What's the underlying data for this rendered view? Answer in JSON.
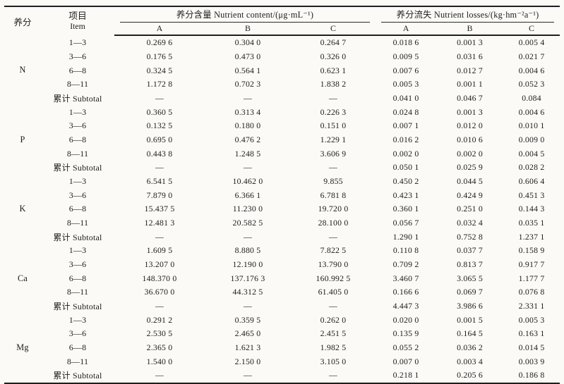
{
  "table": {
    "headers": {
      "nutrient": "养分",
      "item_cn": "项目",
      "item_en": "Item",
      "content_group": "养分含量 Nutrient content/(μg·mL⁻¹)",
      "losses_group": "养分流失 Nutrient losses/(kg·hm⁻²a⁻¹)",
      "sub": [
        "A",
        "B",
        "C"
      ]
    },
    "sections": [
      {
        "nutrient": "N",
        "rows": [
          {
            "item": "1—3",
            "content": [
              "0.269 6",
              "0.304 0",
              "0.264 7"
            ],
            "losses": [
              "0.018 6",
              "0.001 3",
              "0.005 4"
            ]
          },
          {
            "item": "3—6",
            "content": [
              "0.176 5",
              "0.473 0",
              "0.326 0"
            ],
            "losses": [
              "0.009 5",
              "0.031 6",
              "0.021 7"
            ]
          },
          {
            "item": "6—8",
            "content": [
              "0.324 5",
              "0.564 1",
              "0.623 1"
            ],
            "losses": [
              "0.007 6",
              "0.012 7",
              "0.004 6"
            ]
          },
          {
            "item": "8—11",
            "content": [
              "1.172 8",
              "0.702 3",
              "1.838 2"
            ],
            "losses": [
              "0.005 3",
              "0.001 1",
              "0.052 3"
            ]
          },
          {
            "item": "累计 Subtotal",
            "content": [
              "—",
              "—",
              "—"
            ],
            "losses": [
              "0.041 0",
              "0.046 7",
              "0.084"
            ]
          }
        ]
      },
      {
        "nutrient": "P",
        "rows": [
          {
            "item": "1—3",
            "content": [
              "0.360 5",
              "0.313 4",
              "0.226 3"
            ],
            "losses": [
              "0.024 8",
              "0.001 3",
              "0.004 6"
            ]
          },
          {
            "item": "3—6",
            "content": [
              "0.132 5",
              "0.180 0",
              "0.151 0"
            ],
            "losses": [
              "0.007 1",
              "0.012 0",
              "0.010 1"
            ]
          },
          {
            "item": "6—8",
            "content": [
              "0.695 0",
              "0.476 2",
              "1.229 1"
            ],
            "losses": [
              "0.016 2",
              "0.010 6",
              "0.009 0"
            ]
          },
          {
            "item": "8—11",
            "content": [
              "0.443 8",
              "1.248 5",
              "3.606 9"
            ],
            "losses": [
              "0.002 0",
              "0.002 0",
              "0.004 5"
            ]
          },
          {
            "item": "累计 Subtotal",
            "content": [
              "—",
              "—",
              "—"
            ],
            "losses": [
              "0.050 1",
              "0.025 9",
              "0.028 2"
            ]
          }
        ]
      },
      {
        "nutrient": "K",
        "rows": [
          {
            "item": "1—3",
            "content": [
              "6.541 5",
              "10.462 0",
              "9.855"
            ],
            "losses": [
              "0.450 2",
              "0.044 5",
              "0.606 4"
            ]
          },
          {
            "item": "3—6",
            "content": [
              "7.879 0",
              "6.366 1",
              "6.781 8"
            ],
            "losses": [
              "0.423 1",
              "0.424 9",
              "0.451 3"
            ]
          },
          {
            "item": "6—8",
            "content": [
              "15.437 5",
              "11.230 0",
              "19.720 0"
            ],
            "losses": [
              "0.360 1",
              "0.251 0",
              "0.144 3"
            ]
          },
          {
            "item": "8—11",
            "content": [
              "12.481 3",
              "20.582 5",
              "28.100 0"
            ],
            "losses": [
              "0.056 7",
              "0.032 4",
              "0.035 1"
            ]
          },
          {
            "item": "累计 Subtotal",
            "content": [
              "—",
              "—",
              "—"
            ],
            "losses": [
              "1.290 1",
              "0.752 8",
              "1.237 1"
            ]
          }
        ]
      },
      {
        "nutrient": "Ca",
        "rows": [
          {
            "item": "1—3",
            "content": [
              "1.609 5",
              "8.880 5",
              "7.822 5"
            ],
            "losses": [
              "0.110 8",
              "0.037 7",
              "0.158 9"
            ]
          },
          {
            "item": "3—6",
            "content": [
              "13.207 0",
              "12.190 0",
              "13.790 0"
            ],
            "losses": [
              "0.709 2",
              "0.813 7",
              "0.917 7"
            ]
          },
          {
            "item": "6—8",
            "content": [
              "148.370 0",
              "137.176 3",
              "160.992 5"
            ],
            "losses": [
              "3.460 7",
              "3.065 5",
              "1.177 7"
            ]
          },
          {
            "item": "8—11",
            "content": [
              "36.670 0",
              "44.312 5",
              "61.405 0"
            ],
            "losses": [
              "0.166 6",
              "0.069 7",
              "0.076 8"
            ]
          },
          {
            "item": "累计 Subtotal",
            "content": [
              "—",
              "—",
              "—"
            ],
            "losses": [
              "4.447 3",
              "3.986 6",
              "2.331 1"
            ]
          }
        ]
      },
      {
        "nutrient": "Mg",
        "rows": [
          {
            "item": "1—3",
            "content": [
              "0.291 2",
              "0.359 5",
              "0.262 0"
            ],
            "losses": [
              "0.020 0",
              "0.001 5",
              "0.005 3"
            ]
          },
          {
            "item": "3—6",
            "content": [
              "2.530 5",
              "2.465 0",
              "2.451 5"
            ],
            "losses": [
              "0.135 9",
              "0.164 5",
              "0.163 1"
            ]
          },
          {
            "item": "6—8",
            "content": [
              "2.365 0",
              "1.621 3",
              "1.982 5"
            ],
            "losses": [
              "0.055 2",
              "0.036 2",
              "0.014 5"
            ]
          },
          {
            "item": "8—11",
            "content": [
              "1.540 0",
              "2.150 0",
              "3.105 0"
            ],
            "losses": [
              "0.007 0",
              "0.003 4",
              "0.003 9"
            ]
          },
          {
            "item": "累计 Subtotal",
            "content": [
              "—",
              "—",
              "—"
            ],
            "losses": [
              "0.218 1",
              "0.205 6",
              "0.186 8"
            ]
          }
        ]
      }
    ]
  }
}
